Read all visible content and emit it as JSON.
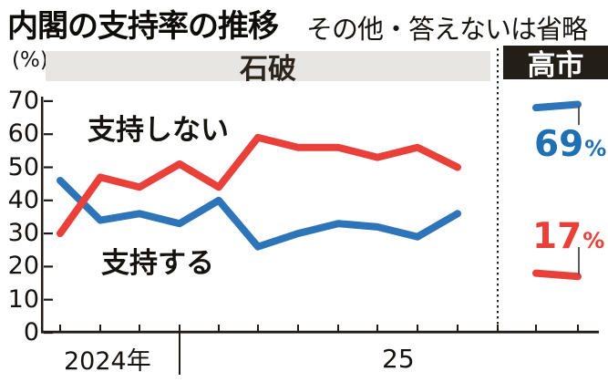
{
  "title": "内閣の支持率の推移",
  "subtitle": "その他・答えないは省略",
  "header": {
    "unit_label": "(%)",
    "ishiba_label": "石破",
    "takaichi_label": "高市"
  },
  "chart_data": {
    "type": "line",
    "title": "内閣の支持率の推移",
    "note": "その他・答えないは省略",
    "ylabel": "(%)",
    "ylim": [
      0,
      70
    ],
    "yticks": [
      0,
      10,
      20,
      30,
      40,
      50,
      60,
      70
    ],
    "x_axis_labels": [
      "2024年",
      "25"
    ],
    "grid": false,
    "legend_position": "inline-annotations",
    "periods": [
      {
        "label": "石破",
        "points": 11
      },
      {
        "label": "高市",
        "points": 2
      }
    ],
    "series": [
      {
        "name": "支持する",
        "color": "#2e74b9",
        "period_ishiba_values": [
          46,
          34,
          36,
          33,
          40,
          26,
          30,
          33,
          32,
          29,
          36
        ],
        "period_takaichi_values": [
          68,
          69
        ],
        "latest_value": "69",
        "percent_sign": "%"
      },
      {
        "name": "支持しない",
        "color": "#e9413a",
        "period_ishiba_values": [
          30,
          47,
          44,
          51,
          44,
          59,
          56,
          56,
          53,
          56,
          50
        ],
        "period_takaichi_values": [
          18,
          17
        ],
        "latest_value": "17",
        "percent_sign": "%"
      }
    ]
  }
}
